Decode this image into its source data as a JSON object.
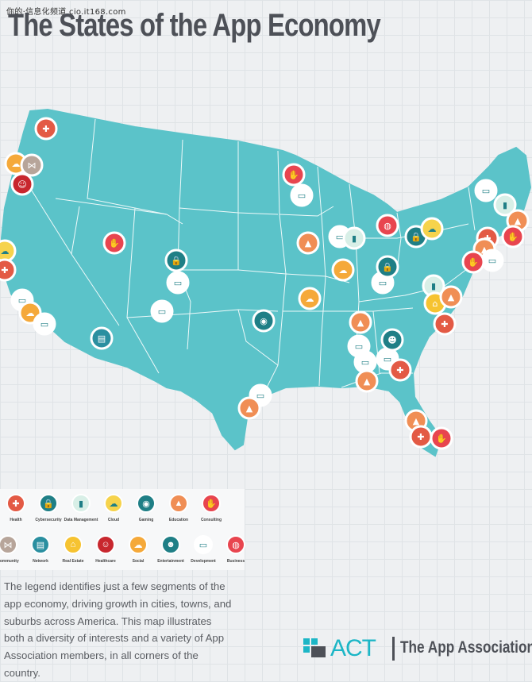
{
  "watermark": "你的·信息化频道 cio.it168.com",
  "title": "The States of the App Economy",
  "colors": {
    "map_fill": "#5bc3c9",
    "state_border": "#ffffff",
    "title": "#4d5057",
    "brand": "#1cb6c6"
  },
  "legend": {
    "row1": [
      {
        "label": "Health",
        "icon": "health-icon",
        "color": "#e35a45"
      },
      {
        "label": "Cybersecurity",
        "icon": "lock-icon",
        "color": "#1f7f86"
      },
      {
        "label": "Data Management",
        "icon": "data-bars-icon",
        "color": "#d8efe7"
      },
      {
        "label": "Cloud",
        "icon": "cloud-icon",
        "color": "#f6d34c"
      },
      {
        "label": "Gaming",
        "icon": "gamepad-icon",
        "color": "#1f7f86"
      },
      {
        "label": "Education",
        "icon": "grad-cap-icon",
        "color": "#f08e55"
      },
      {
        "label": "Consulting",
        "icon": "handshake-icon",
        "color": "#e8454f"
      }
    ],
    "row2": [
      {
        "label": "Community",
        "icon": "share-icon",
        "color": "#b7a59a"
      },
      {
        "label": "Network",
        "icon": "server-icon",
        "color": "#2a8fa0"
      },
      {
        "label": "Real Estate",
        "icon": "house-icon",
        "color": "#f6c331"
      },
      {
        "label": "Healthcare",
        "icon": "person-icon",
        "color": "#c8272e"
      },
      {
        "label": "Social",
        "icon": "social-icon",
        "color": "#f5a93a"
      },
      {
        "label": "Entertainment",
        "icon": "mask-icon",
        "color": "#1f7f86"
      },
      {
        "label": "Development",
        "icon": "monitor-code-icon",
        "color": "#ffffff"
      },
      {
        "label": "Business",
        "icon": "globe-icon",
        "color": "#e8454f"
      }
    ]
  },
  "blurb": "The legend identifies just a few segments of the app economy, driving growth in cities, towns, and suburbs across America. This map illustrates both a diversity of interests and a variety of App Association members, in all corners of the country.",
  "brand": {
    "act": "ACT",
    "association": "The App Association"
  }
}
